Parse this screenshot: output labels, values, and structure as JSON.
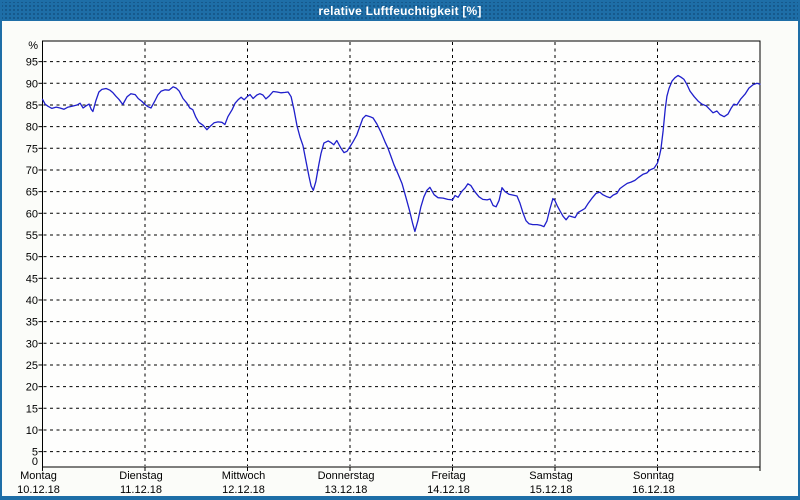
{
  "window": {
    "title": "relative Luftfeuchtigkeit [%]"
  },
  "colors": {
    "titlebar": "#1e6ea7",
    "frame": "#1e6ea7",
    "background": "#fbfcf9",
    "plot_background": "#fefefd",
    "grid": "#000000",
    "line": "#1f1fcb",
    "title_text": "#ffffff",
    "axis_text": "#000000"
  },
  "chart_data": {
    "type": "line",
    "title": "relative Luftfeuchtigkeit [%]",
    "ylabel": "%",
    "ylim": [
      0,
      100
    ],
    "yticks": {
      "min": 0,
      "max": 95,
      "step": 5
    },
    "grid": "dashed",
    "legend": "none",
    "x_hours_total": 168,
    "x_days": [
      {
        "name": "Montag",
        "date": "10.12.18"
      },
      {
        "name": "Dienstag",
        "date": "11.12.18"
      },
      {
        "name": "Mittwoch",
        "date": "12.12.18"
      },
      {
        "name": "Donnerstag",
        "date": "13.12.18"
      },
      {
        "name": "Freitag",
        "date": "14.12.18"
      },
      {
        "name": "Samstag",
        "date": "15.12.18"
      },
      {
        "name": "Sonntag",
        "date": "16.12.18"
      }
    ],
    "series": [
      {
        "name": "relative Luftfeuchtigkeit",
        "unit": "%",
        "points": [
          [
            0,
            86.3
          ],
          [
            0.6,
            85.2
          ],
          [
            1.3,
            84.7
          ],
          [
            2.2,
            84.2
          ],
          [
            3.2,
            84.5
          ],
          [
            4.1,
            84.3
          ],
          [
            5,
            84
          ],
          [
            6,
            84.5
          ],
          [
            6.9,
            84.7
          ],
          [
            8.1,
            85
          ],
          [
            8.8,
            85.4
          ],
          [
            9.5,
            84.3
          ],
          [
            10.2,
            84.8
          ],
          [
            10.9,
            85.2
          ],
          [
            11.4,
            84
          ],
          [
            11.8,
            83.5
          ],
          [
            12.5,
            86
          ],
          [
            13.2,
            88
          ],
          [
            13.9,
            88.6
          ],
          [
            14.9,
            88.8
          ],
          [
            15.8,
            88.4
          ],
          [
            16.5,
            87.8
          ],
          [
            17.2,
            87
          ],
          [
            17.9,
            86.3
          ],
          [
            18.8,
            85.1
          ],
          [
            19.8,
            86.9
          ],
          [
            20.7,
            87.6
          ],
          [
            21.7,
            87.4
          ],
          [
            22.4,
            86.5
          ],
          [
            23.3,
            85.8
          ],
          [
            24,
            85.1
          ],
          [
            24.7,
            84.6
          ],
          [
            25.4,
            84.3
          ],
          [
            26.3,
            85.9
          ],
          [
            27,
            87.3
          ],
          [
            27.8,
            88.2
          ],
          [
            28.7,
            88.5
          ],
          [
            29.6,
            88.4
          ],
          [
            30.6,
            89.2
          ],
          [
            31.3,
            88.9
          ],
          [
            32,
            88.2
          ],
          [
            32.9,
            86.5
          ],
          [
            33.8,
            85.4
          ],
          [
            34.5,
            84.3
          ],
          [
            35.2,
            83.9
          ],
          [
            35.9,
            82.2
          ],
          [
            36.6,
            81
          ],
          [
            37.6,
            80.3
          ],
          [
            38.5,
            79.3
          ],
          [
            39.2,
            80
          ],
          [
            40.2,
            80.9
          ],
          [
            41.1,
            81.1
          ],
          [
            42,
            81
          ],
          [
            42.7,
            80.5
          ],
          [
            43.4,
            82.3
          ],
          [
            44.4,
            83.9
          ],
          [
            45.1,
            85.4
          ],
          [
            45.8,
            86.2
          ],
          [
            46.5,
            86.8
          ],
          [
            47.2,
            86.2
          ],
          [
            48,
            87
          ],
          [
            48.6,
            87.4
          ],
          [
            49.3,
            86.5
          ],
          [
            50.2,
            87.3
          ],
          [
            50.9,
            87.6
          ],
          [
            51.6,
            87.3
          ],
          [
            52.3,
            86.4
          ],
          [
            53,
            87
          ],
          [
            54,
            88.1
          ],
          [
            54.9,
            88
          ],
          [
            55.8,
            87.8
          ],
          [
            56.8,
            87.9
          ],
          [
            57.5,
            88
          ],
          [
            58.2,
            86.9
          ],
          [
            58.9,
            83.8
          ],
          [
            59.6,
            80.2
          ],
          [
            60.3,
            77.6
          ],
          [
            61,
            75.6
          ],
          [
            61.7,
            72
          ],
          [
            62.4,
            68.5
          ],
          [
            62.9,
            66.3
          ],
          [
            63.4,
            65.3
          ],
          [
            64,
            67.3
          ],
          [
            64.7,
            71.2
          ],
          [
            65.2,
            73.8
          ],
          [
            65.9,
            76.2
          ],
          [
            66.9,
            76.7
          ],
          [
            67.6,
            76.3
          ],
          [
            68.2,
            75.8
          ],
          [
            68.9,
            76.8
          ],
          [
            69.9,
            75
          ],
          [
            70.6,
            74
          ],
          [
            71.3,
            74.3
          ],
          [
            72,
            75.4
          ],
          [
            72.7,
            76.5
          ],
          [
            73.6,
            78.1
          ],
          [
            74.3,
            80
          ],
          [
            75,
            81.9
          ],
          [
            75.7,
            82.6
          ],
          [
            76.7,
            82.3
          ],
          [
            77.4,
            82
          ],
          [
            78.3,
            80.6
          ],
          [
            79.3,
            78.6
          ],
          [
            80.2,
            76.5
          ],
          [
            80.9,
            75
          ],
          [
            81.6,
            73.1
          ],
          [
            82.3,
            71.2
          ],
          [
            83.2,
            69.2
          ],
          [
            84.2,
            66.8
          ],
          [
            85.1,
            63.7
          ],
          [
            86,
            60.4
          ],
          [
            86.7,
            57.5
          ],
          [
            87.2,
            55.8
          ],
          [
            87.9,
            58.3
          ],
          [
            88.6,
            61.5
          ],
          [
            89.3,
            63.8
          ],
          [
            90,
            65.3
          ],
          [
            90.7,
            66
          ],
          [
            91.7,
            64.3
          ],
          [
            92.6,
            63.6
          ],
          [
            93.8,
            63.5
          ],
          [
            94.9,
            63.2
          ],
          [
            96,
            63.1
          ],
          [
            96.6,
            64.1
          ],
          [
            97.3,
            63.7
          ],
          [
            98.2,
            65.1
          ],
          [
            98.9,
            65.8
          ],
          [
            99.6,
            66.8
          ],
          [
            100.3,
            66.4
          ],
          [
            101.2,
            65
          ],
          [
            102.2,
            63.8
          ],
          [
            103.1,
            63.2
          ],
          [
            104.1,
            63.1
          ],
          [
            104.8,
            63.3
          ],
          [
            105.5,
            61.8
          ],
          [
            106.2,
            61.5
          ],
          [
            106.9,
            63
          ],
          [
            107.6,
            65.9
          ],
          [
            108.3,
            65
          ],
          [
            109.2,
            64.4
          ],
          [
            110.2,
            64.2
          ],
          [
            111.1,
            64
          ],
          [
            111.8,
            62.3
          ],
          [
            112.5,
            60.1
          ],
          [
            113.2,
            58.3
          ],
          [
            113.9,
            57.6
          ],
          [
            114.8,
            57.4
          ],
          [
            115.8,
            57.4
          ],
          [
            116.7,
            57.2
          ],
          [
            117.4,
            56.9
          ],
          [
            118.1,
            58.2
          ],
          [
            118.8,
            61
          ],
          [
            119.5,
            63.4
          ],
          [
            120,
            62.9
          ],
          [
            120.5,
            61.8
          ],
          [
            121.2,
            60.5
          ],
          [
            121.9,
            59.3
          ],
          [
            122.6,
            58.5
          ],
          [
            123.3,
            59.4
          ],
          [
            124,
            59.2
          ],
          [
            124.7,
            59
          ],
          [
            125.4,
            60.2
          ],
          [
            126.3,
            60.7
          ],
          [
            127,
            61.1
          ],
          [
            127.7,
            62.2
          ],
          [
            128.6,
            63.4
          ],
          [
            129.6,
            64.6
          ],
          [
            130.5,
            64.9
          ],
          [
            131.2,
            64.3
          ],
          [
            132.2,
            63.8
          ],
          [
            132.9,
            63.6
          ],
          [
            133.6,
            64.2
          ],
          [
            134.5,
            64.6
          ],
          [
            135.2,
            65.7
          ],
          [
            135.9,
            66.2
          ],
          [
            136.9,
            66.9
          ],
          [
            137.8,
            67.2
          ],
          [
            138.7,
            67.6
          ],
          [
            139.6,
            68.3
          ],
          [
            140.6,
            69
          ],
          [
            141.5,
            69.3
          ],
          [
            142.2,
            70
          ],
          [
            143.2,
            70.4
          ],
          [
            144,
            71.6
          ],
          [
            144.4,
            73
          ],
          [
            144.8,
            74.8
          ],
          [
            145.3,
            79
          ],
          [
            145.8,
            84
          ],
          [
            146.2,
            87
          ],
          [
            146.7,
            88.8
          ],
          [
            147.4,
            90.5
          ],
          [
            148.1,
            91.3
          ],
          [
            148.8,
            91.8
          ],
          [
            149.5,
            91.4
          ],
          [
            150.2,
            90.9
          ],
          [
            150.9,
            89.7
          ],
          [
            151.6,
            88.2
          ],
          [
            152.6,
            86.9
          ],
          [
            153.5,
            85.9
          ],
          [
            154.4,
            85.2
          ],
          [
            155.4,
            84.8
          ],
          [
            156.3,
            83.9
          ],
          [
            157,
            83.2
          ],
          [
            157.9,
            83.6
          ],
          [
            158.6,
            82.8
          ],
          [
            159.6,
            82.3
          ],
          [
            160.5,
            82.9
          ],
          [
            161.2,
            84.2
          ],
          [
            161.9,
            85.2
          ],
          [
            162.6,
            85
          ],
          [
            163.5,
            86.4
          ],
          [
            164.5,
            87.5
          ],
          [
            165.4,
            88.9
          ],
          [
            166.4,
            89.7
          ],
          [
            167.3,
            90
          ],
          [
            168,
            89.8
          ]
        ]
      }
    ]
  }
}
